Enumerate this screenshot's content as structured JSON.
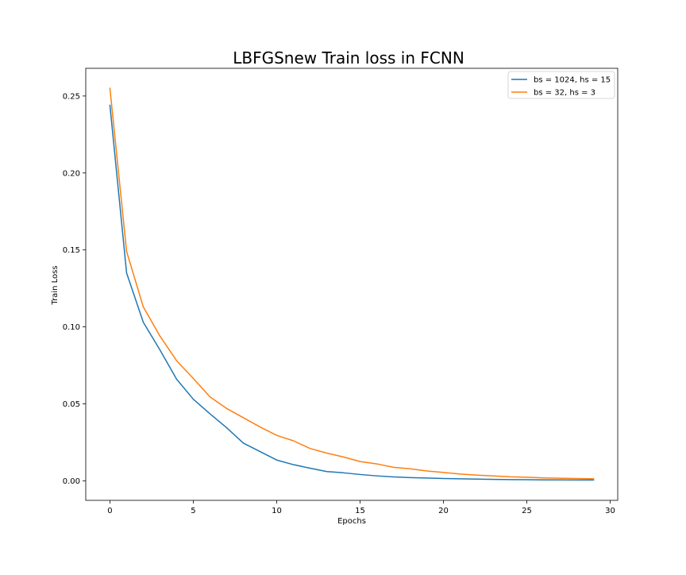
{
  "chart_data": {
    "type": "line",
    "title": "LBFGSnew Train loss in FCNN",
    "xlabel": "Epochs",
    "ylabel": "Train Loss",
    "xlim": [
      -1.45,
      30.45
    ],
    "ylim": [
      -0.0127,
      0.268
    ],
    "xticks": [
      0,
      5,
      10,
      15,
      20,
      25,
      30
    ],
    "xtick_labels": [
      "0",
      "5",
      "10",
      "15",
      "20",
      "25",
      "30"
    ],
    "yticks": [
      0.0,
      0.05,
      0.1,
      0.15,
      0.2,
      0.25
    ],
    "ytick_labels": [
      "0.00",
      "0.05",
      "0.10",
      "0.15",
      "0.20",
      "0.25"
    ],
    "grid": false,
    "legend_position": "top-right",
    "x": [
      0,
      1,
      2,
      3,
      4,
      5,
      6,
      7,
      8,
      9,
      10,
      11,
      12,
      13,
      14,
      15,
      16,
      17,
      18,
      19,
      20,
      21,
      22,
      23,
      24,
      25,
      26,
      27,
      28,
      29
    ],
    "series": [
      {
        "name": "bs = 1024, hs = 15",
        "color": "#1f77b4",
        "values": [
          0.244,
          0.135,
          0.103,
          0.085,
          0.066,
          0.053,
          0.0435,
          0.0345,
          0.0245,
          0.019,
          0.0135,
          0.0105,
          0.0082,
          0.006,
          0.0052,
          0.0041,
          0.0032,
          0.0025,
          0.0021,
          0.0018,
          0.0015,
          0.0013,
          0.0011,
          0.0009,
          0.0008,
          0.0007,
          0.0006,
          0.0006,
          0.0005,
          0.0005
        ]
      },
      {
        "name": "bs = 32, hs = 3",
        "color": "#ff7f0e",
        "values": [
          0.255,
          0.149,
          0.113,
          0.094,
          0.078,
          0.0665,
          0.0545,
          0.047,
          0.041,
          0.035,
          0.0295,
          0.026,
          0.021,
          0.018,
          0.0155,
          0.0125,
          0.011,
          0.0088,
          0.0078,
          0.0064,
          0.0054,
          0.0044,
          0.0037,
          0.0032,
          0.0026,
          0.0023,
          0.0019,
          0.0017,
          0.0015,
          0.0013
        ]
      }
    ]
  }
}
